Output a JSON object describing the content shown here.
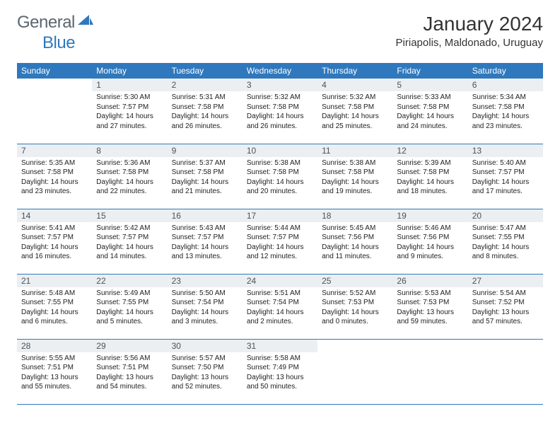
{
  "brand": {
    "part1": "General",
    "part2": "Blue"
  },
  "title": "January 2024",
  "location": "Piriapolis, Maldonado, Uruguay",
  "colors": {
    "header_bg": "#2f78bd",
    "header_fg": "#ffffff",
    "daynum_bg": "#eceff1"
  },
  "weekdays": [
    "Sunday",
    "Monday",
    "Tuesday",
    "Wednesday",
    "Thursday",
    "Friday",
    "Saturday"
  ],
  "weeks": [
    [
      {
        "n": "",
        "sunrise": "",
        "sunset": "",
        "daylight": ""
      },
      {
        "n": "1",
        "sunrise": "Sunrise: 5:30 AM",
        "sunset": "Sunset: 7:57 PM",
        "daylight": "Daylight: 14 hours and 27 minutes."
      },
      {
        "n": "2",
        "sunrise": "Sunrise: 5:31 AM",
        "sunset": "Sunset: 7:58 PM",
        "daylight": "Daylight: 14 hours and 26 minutes."
      },
      {
        "n": "3",
        "sunrise": "Sunrise: 5:32 AM",
        "sunset": "Sunset: 7:58 PM",
        "daylight": "Daylight: 14 hours and 26 minutes."
      },
      {
        "n": "4",
        "sunrise": "Sunrise: 5:32 AM",
        "sunset": "Sunset: 7:58 PM",
        "daylight": "Daylight: 14 hours and 25 minutes."
      },
      {
        "n": "5",
        "sunrise": "Sunrise: 5:33 AM",
        "sunset": "Sunset: 7:58 PM",
        "daylight": "Daylight: 14 hours and 24 minutes."
      },
      {
        "n": "6",
        "sunrise": "Sunrise: 5:34 AM",
        "sunset": "Sunset: 7:58 PM",
        "daylight": "Daylight: 14 hours and 23 minutes."
      }
    ],
    [
      {
        "n": "7",
        "sunrise": "Sunrise: 5:35 AM",
        "sunset": "Sunset: 7:58 PM",
        "daylight": "Daylight: 14 hours and 23 minutes."
      },
      {
        "n": "8",
        "sunrise": "Sunrise: 5:36 AM",
        "sunset": "Sunset: 7:58 PM",
        "daylight": "Daylight: 14 hours and 22 minutes."
      },
      {
        "n": "9",
        "sunrise": "Sunrise: 5:37 AM",
        "sunset": "Sunset: 7:58 PM",
        "daylight": "Daylight: 14 hours and 21 minutes."
      },
      {
        "n": "10",
        "sunrise": "Sunrise: 5:38 AM",
        "sunset": "Sunset: 7:58 PM",
        "daylight": "Daylight: 14 hours and 20 minutes."
      },
      {
        "n": "11",
        "sunrise": "Sunrise: 5:38 AM",
        "sunset": "Sunset: 7:58 PM",
        "daylight": "Daylight: 14 hours and 19 minutes."
      },
      {
        "n": "12",
        "sunrise": "Sunrise: 5:39 AM",
        "sunset": "Sunset: 7:58 PM",
        "daylight": "Daylight: 14 hours and 18 minutes."
      },
      {
        "n": "13",
        "sunrise": "Sunrise: 5:40 AM",
        "sunset": "Sunset: 7:57 PM",
        "daylight": "Daylight: 14 hours and 17 minutes."
      }
    ],
    [
      {
        "n": "14",
        "sunrise": "Sunrise: 5:41 AM",
        "sunset": "Sunset: 7:57 PM",
        "daylight": "Daylight: 14 hours and 16 minutes."
      },
      {
        "n": "15",
        "sunrise": "Sunrise: 5:42 AM",
        "sunset": "Sunset: 7:57 PM",
        "daylight": "Daylight: 14 hours and 14 minutes."
      },
      {
        "n": "16",
        "sunrise": "Sunrise: 5:43 AM",
        "sunset": "Sunset: 7:57 PM",
        "daylight": "Daylight: 14 hours and 13 minutes."
      },
      {
        "n": "17",
        "sunrise": "Sunrise: 5:44 AM",
        "sunset": "Sunset: 7:57 PM",
        "daylight": "Daylight: 14 hours and 12 minutes."
      },
      {
        "n": "18",
        "sunrise": "Sunrise: 5:45 AM",
        "sunset": "Sunset: 7:56 PM",
        "daylight": "Daylight: 14 hours and 11 minutes."
      },
      {
        "n": "19",
        "sunrise": "Sunrise: 5:46 AM",
        "sunset": "Sunset: 7:56 PM",
        "daylight": "Daylight: 14 hours and 9 minutes."
      },
      {
        "n": "20",
        "sunrise": "Sunrise: 5:47 AM",
        "sunset": "Sunset: 7:55 PM",
        "daylight": "Daylight: 14 hours and 8 minutes."
      }
    ],
    [
      {
        "n": "21",
        "sunrise": "Sunrise: 5:48 AM",
        "sunset": "Sunset: 7:55 PM",
        "daylight": "Daylight: 14 hours and 6 minutes."
      },
      {
        "n": "22",
        "sunrise": "Sunrise: 5:49 AM",
        "sunset": "Sunset: 7:55 PM",
        "daylight": "Daylight: 14 hours and 5 minutes."
      },
      {
        "n": "23",
        "sunrise": "Sunrise: 5:50 AM",
        "sunset": "Sunset: 7:54 PM",
        "daylight": "Daylight: 14 hours and 3 minutes."
      },
      {
        "n": "24",
        "sunrise": "Sunrise: 5:51 AM",
        "sunset": "Sunset: 7:54 PM",
        "daylight": "Daylight: 14 hours and 2 minutes."
      },
      {
        "n": "25",
        "sunrise": "Sunrise: 5:52 AM",
        "sunset": "Sunset: 7:53 PM",
        "daylight": "Daylight: 14 hours and 0 minutes."
      },
      {
        "n": "26",
        "sunrise": "Sunrise: 5:53 AM",
        "sunset": "Sunset: 7:53 PM",
        "daylight": "Daylight: 13 hours and 59 minutes."
      },
      {
        "n": "27",
        "sunrise": "Sunrise: 5:54 AM",
        "sunset": "Sunset: 7:52 PM",
        "daylight": "Daylight: 13 hours and 57 minutes."
      }
    ],
    [
      {
        "n": "28",
        "sunrise": "Sunrise: 5:55 AM",
        "sunset": "Sunset: 7:51 PM",
        "daylight": "Daylight: 13 hours and 55 minutes."
      },
      {
        "n": "29",
        "sunrise": "Sunrise: 5:56 AM",
        "sunset": "Sunset: 7:51 PM",
        "daylight": "Daylight: 13 hours and 54 minutes."
      },
      {
        "n": "30",
        "sunrise": "Sunrise: 5:57 AM",
        "sunset": "Sunset: 7:50 PM",
        "daylight": "Daylight: 13 hours and 52 minutes."
      },
      {
        "n": "31",
        "sunrise": "Sunrise: 5:58 AM",
        "sunset": "Sunset: 7:49 PM",
        "daylight": "Daylight: 13 hours and 50 minutes."
      },
      {
        "n": "",
        "sunrise": "",
        "sunset": "",
        "daylight": ""
      },
      {
        "n": "",
        "sunrise": "",
        "sunset": "",
        "daylight": ""
      },
      {
        "n": "",
        "sunrise": "",
        "sunset": "",
        "daylight": ""
      }
    ]
  ]
}
